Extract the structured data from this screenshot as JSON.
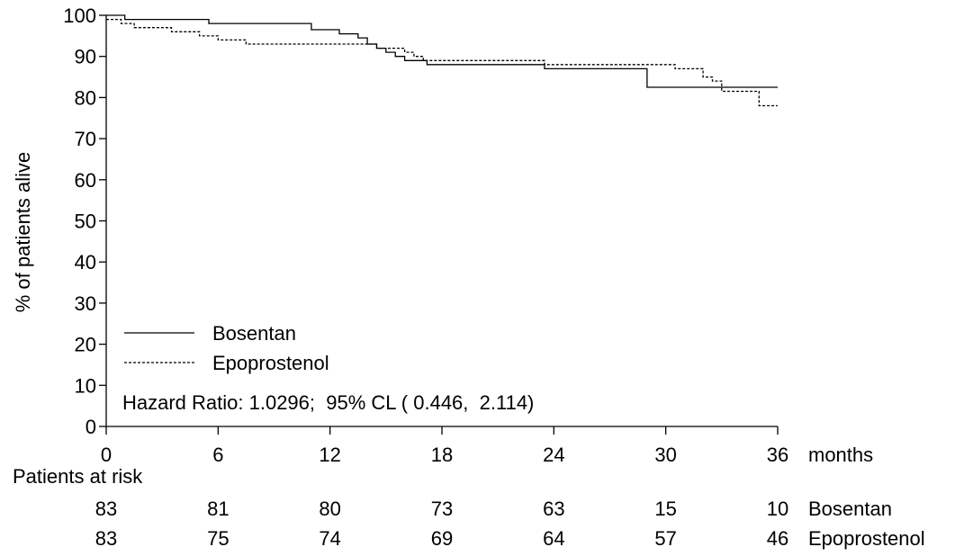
{
  "chart_data": {
    "type": "line",
    "title": "",
    "xlabel": "months",
    "ylabel": "% of patients alive",
    "xlim": [
      0,
      36
    ],
    "ylim": [
      0,
      100
    ],
    "x_ticks": [
      "0",
      "6",
      "12",
      "18",
      "24",
      "30",
      "36"
    ],
    "y_ticks": [
      "0",
      "10",
      "20",
      "30",
      "40",
      "50",
      "60",
      "70",
      "80",
      "90",
      "100"
    ],
    "grid": false,
    "legend_position": "bottom-left",
    "annotation": "Hazard Ratio: 1.0296;  95% CL ( 0.446,  2.114)",
    "series": [
      {
        "name": "Bosentan",
        "line_style": "solid",
        "points": [
          [
            0,
            100
          ],
          [
            1,
            100
          ],
          [
            1,
            99
          ],
          [
            5.5,
            99
          ],
          [
            5.5,
            98
          ],
          [
            11,
            98
          ],
          [
            11,
            96.5
          ],
          [
            12.5,
            96.5
          ],
          [
            12.5,
            95.5
          ],
          [
            13.5,
            95.5
          ],
          [
            13.5,
            94.5
          ],
          [
            14,
            94.5
          ],
          [
            14,
            93
          ],
          [
            14.5,
            93
          ],
          [
            14.5,
            92
          ],
          [
            15,
            92
          ],
          [
            15,
            91
          ],
          [
            15.5,
            91
          ],
          [
            15.5,
            90
          ],
          [
            16,
            90
          ],
          [
            16,
            89
          ],
          [
            17.2,
            89
          ],
          [
            17.2,
            88
          ],
          [
            23.5,
            88
          ],
          [
            23.5,
            87
          ],
          [
            29,
            87
          ],
          [
            29,
            82.5
          ],
          [
            36,
            82.5
          ]
        ]
      },
      {
        "name": "Epoprostenol",
        "line_style": "dashed",
        "points": [
          [
            0,
            99
          ],
          [
            0.8,
            99
          ],
          [
            0.8,
            98
          ],
          [
            1.5,
            98
          ],
          [
            1.5,
            97
          ],
          [
            3.5,
            97
          ],
          [
            3.5,
            96
          ],
          [
            5,
            96
          ],
          [
            5,
            95
          ],
          [
            6,
            95
          ],
          [
            6,
            94
          ],
          [
            7.5,
            94
          ],
          [
            7.5,
            93
          ],
          [
            14.5,
            93
          ],
          [
            14.5,
            92
          ],
          [
            16,
            92
          ],
          [
            16,
            91
          ],
          [
            16.5,
            91
          ],
          [
            16.5,
            90
          ],
          [
            17,
            90
          ],
          [
            17,
            89
          ],
          [
            23.5,
            89
          ],
          [
            23.5,
            88
          ],
          [
            30.5,
            88
          ],
          [
            30.5,
            87
          ],
          [
            32,
            87
          ],
          [
            32,
            85
          ],
          [
            32.5,
            85
          ],
          [
            32.5,
            84
          ],
          [
            33,
            84
          ],
          [
            33,
            81.5
          ],
          [
            35,
            81.5
          ],
          [
            35,
            78
          ],
          [
            36,
            78
          ]
        ]
      }
    ],
    "risk_table": {
      "title": "Patients at risk",
      "rows": [
        {
          "name": "Bosentan",
          "values": [
            "83",
            "81",
            "80",
            "73",
            "63",
            "15",
            "10"
          ]
        },
        {
          "name": "Epoprostenol",
          "values": [
            "83",
            "75",
            "74",
            "69",
            "64",
            "57",
            "46"
          ]
        }
      ]
    }
  }
}
